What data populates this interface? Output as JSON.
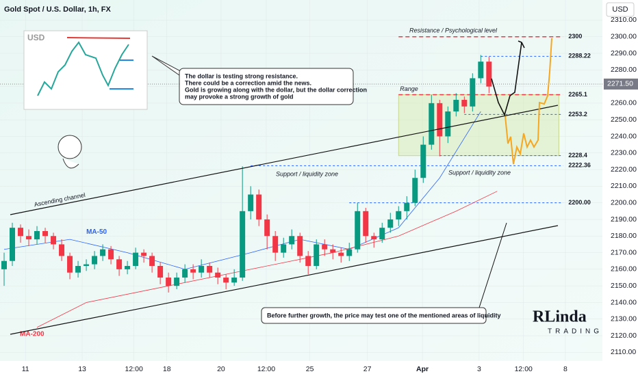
{
  "chart_data": {
    "type": "candlestick",
    "title": "Gold Spot / U.S. Dollar, 1h, FX",
    "currency": "USD",
    "up_color": "#089981",
    "down_color": "#f23645",
    "xlim": [
      -0.5,
      72.8
    ],
    "ylim": [
      2104.8,
      2322.1
    ],
    "xticks": [
      {
        "value": 2.6,
        "label": "11"
      },
      {
        "value": 9.5,
        "label": "13"
      },
      {
        "value": 15.8,
        "label": "12:00"
      },
      {
        "value": 19.8,
        "label": "18"
      },
      {
        "value": 26.4,
        "label": "20"
      },
      {
        "value": 31.9,
        "label": "12:00"
      },
      {
        "value": 37.2,
        "label": "25"
      },
      {
        "value": 44.2,
        "label": "27"
      },
      {
        "value": 50.9,
        "label": "Apr"
      },
      {
        "value": 57.8,
        "label": "3"
      },
      {
        "value": 63.2,
        "label": "12:00"
      },
      {
        "value": 68.3,
        "label": "8"
      }
    ],
    "yticks": [
      {
        "value": 2110,
        "label": "2110.00"
      },
      {
        "value": 2120,
        "label": "2120.00"
      },
      {
        "value": 2130,
        "label": "2130.00"
      },
      {
        "value": 2140,
        "label": "2140.00"
      },
      {
        "value": 2150,
        "label": "2150.00"
      },
      {
        "value": 2160,
        "label": "2160.00"
      },
      {
        "value": 2170,
        "label": "2170.00"
      },
      {
        "value": 2180,
        "label": "2180.00"
      },
      {
        "value": 2190,
        "label": "2190.00"
      },
      {
        "value": 2200,
        "label": "2200.00"
      },
      {
        "value": 2210,
        "label": "2210.00"
      },
      {
        "value": 2220,
        "label": "2220.00"
      },
      {
        "value": 2230,
        "label": "2230.00"
      },
      {
        "value": 2240,
        "label": "2240.00"
      },
      {
        "value": 2250,
        "label": "2250.00"
      },
      {
        "value": 2260,
        "label": "2260.00"
      },
      {
        "value": 2270,
        "label": "2270.00"
      },
      {
        "value": 2280,
        "label": "2280.00"
      },
      {
        "value": 2290,
        "label": "2290.00"
      },
      {
        "value": 2300,
        "label": "2300.00"
      },
      {
        "value": 2310,
        "label": "2310.00"
      }
    ],
    "last_price": {
      "value": 2271.5,
      "label": "2271.50"
    },
    "series": [
      {
        "name": "XAUUSD",
        "values": [
          [
            2160,
            2170,
            2150,
            2165
          ],
          [
            2165,
            2188,
            2162,
            2185
          ],
          [
            2185,
            2187,
            2176,
            2180
          ],
          [
            2180,
            2184,
            2174,
            2178
          ],
          [
            2178,
            2186,
            2175,
            2183
          ],
          [
            2183,
            2185,
            2176,
            2180
          ],
          [
            2180,
            2182,
            2172,
            2175
          ],
          [
            2175,
            2178,
            2165,
            2168
          ],
          [
            2168,
            2170,
            2154,
            2158
          ],
          [
            2158,
            2165,
            2155,
            2162
          ],
          [
            2162,
            2166,
            2159,
            2163
          ],
          [
            2163,
            2171,
            2160,
            2168
          ],
          [
            2168,
            2175,
            2165,
            2172
          ],
          [
            2172,
            2174,
            2163,
            2166
          ],
          [
            2166,
            2168,
            2156,
            2160
          ],
          [
            2160,
            2165,
            2157,
            2162
          ],
          [
            2162,
            2173,
            2160,
            2170
          ],
          [
            2170,
            2172,
            2164,
            2168
          ],
          [
            2168,
            2170,
            2158,
            2162
          ],
          [
            2162,
            2164,
            2151,
            2155
          ],
          [
            2155,
            2158,
            2146,
            2150
          ],
          [
            2150,
            2158,
            2148,
            2155
          ],
          [
            2155,
            2163,
            2152,
            2160
          ],
          [
            2160,
            2163,
            2154,
            2158
          ],
          [
            2158,
            2166,
            2155,
            2162
          ],
          [
            2162,
            2164,
            2155,
            2158
          ],
          [
            2158,
            2161,
            2151,
            2155
          ],
          [
            2155,
            2157,
            2148,
            2152
          ],
          [
            2152,
            2160,
            2150,
            2155
          ],
          [
            2155,
            2222,
            2153,
            2195
          ],
          [
            2195,
            2210,
            2190,
            2205
          ],
          [
            2205,
            2208,
            2186,
            2190
          ],
          [
            2190,
            2193,
            2172,
            2180
          ],
          [
            2180,
            2183,
            2165,
            2170
          ],
          [
            2170,
            2179,
            2167,
            2175
          ],
          [
            2175,
            2184,
            2172,
            2180
          ],
          [
            2180,
            2182,
            2164,
            2168
          ],
          [
            2168,
            2171,
            2157,
            2162
          ],
          [
            2162,
            2178,
            2160,
            2175
          ],
          [
            2175,
            2178,
            2168,
            2172
          ],
          [
            2172,
            2175,
            2166,
            2170
          ],
          [
            2170,
            2173,
            2164,
            2168
          ],
          [
            2168,
            2176,
            2165,
            2172
          ],
          [
            2172,
            2200,
            2170,
            2195
          ],
          [
            2195,
            2197,
            2176,
            2180
          ],
          [
            2180,
            2182,
            2173,
            2178
          ],
          [
            2178,
            2188,
            2176,
            2185
          ],
          [
            2185,
            2194,
            2182,
            2190
          ],
          [
            2190,
            2198,
            2186,
            2195
          ],
          [
            2195,
            2204,
            2190,
            2200
          ],
          [
            2200,
            2220,
            2198,
            2215
          ],
          [
            2215,
            2240,
            2212,
            2235
          ],
          [
            2235,
            2265,
            2232,
            2260
          ],
          [
            2260,
            2262,
            2228,
            2240
          ],
          [
            2240,
            2258,
            2236,
            2255
          ],
          [
            2255,
            2266,
            2252,
            2262
          ],
          [
            2262,
            2264,
            2254,
            2258
          ],
          [
            2258,
            2278,
            2255,
            2275
          ],
          [
            2275,
            2289,
            2272,
            2285
          ],
          [
            2285,
            2288,
            2266,
            2270
          ]
        ]
      }
    ],
    "moving_averages": [
      {
        "name": "MA-50",
        "color": "#2962ff",
        "x": [
          0,
          8,
          15,
          22,
          30,
          36,
          42,
          48,
          53,
          58
        ],
        "values": [
          2172,
          2178,
          2170,
          2160,
          2170,
          2178,
          2172,
          2185,
          2215,
          2255
        ]
      },
      {
        "name": "MA-200",
        "color": "#f23645",
        "x": [
          4,
          10,
          20,
          30,
          40,
          48,
          55,
          60
        ],
        "values": [
          2125,
          2140,
          2150,
          2160,
          2170,
          2180,
          2195,
          2207
        ]
      }
    ],
    "levels": [
      {
        "value": 2300,
        "color": "#f23645",
        "x": [
          48,
          68
        ]
      },
      {
        "value": 2288.22,
        "color": "#2962ff",
        "x": [
          58,
          68
        ]
      },
      {
        "value": 2265.1,
        "color": "#f23645",
        "x": [
          48,
          68
        ]
      },
      {
        "value": 2253.2,
        "color": "#2962ff",
        "x": [
          56,
          68
        ]
      },
      {
        "value": 2228.4,
        "color": "#2962ff",
        "x": [
          53,
          68
        ]
      },
      {
        "value": 2222.36,
        "color": "#2962ff",
        "x": [
          30,
          68
        ]
      },
      {
        "value": {
          "value": 2200,
          "label": "2200.00"
        },
        "color": "#2962ff",
        "x": [
          42,
          68
        ]
      }
    ],
    "range": {
      "label": "Range",
      "x": [
        48,
        67.5
      ],
      "y": [
        2228.4,
        2265.1
      ]
    },
    "annotations": {
      "resistance": "Resistance / Psychological level",
      "support_1": "Support / liquidity zone",
      "support_2": "Support  /  liquidity zone",
      "channel": "Ascending channel",
      "callout": [
        "The dollar is testing strong resistance.",
        "There could be a correction amid the news.",
        "Gold is growing along with the dollar, but the dollar correction",
        "may provoke a strong growth of gold"
      ],
      "bottom_note": "Before further growth, the price may test one of the mentioned areas of liquidity",
      "inset_label": "USD",
      "logo": [
        "RLinda",
        "TRADING"
      ]
    }
  }
}
